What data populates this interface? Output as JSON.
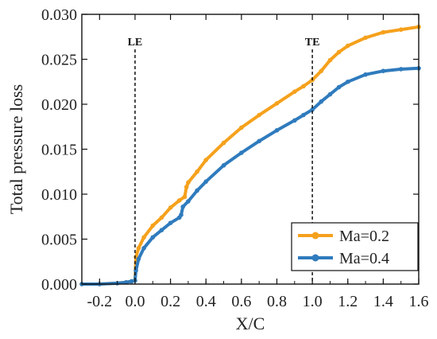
{
  "chart_data": {
    "type": "line",
    "xlabel": "X/C",
    "ylabel": "Total pressure loss",
    "xlim": [
      -0.3,
      1.6
    ],
    "ylim": [
      0.0,
      0.03
    ],
    "x_ticks": [
      -0.2,
      0.0,
      0.2,
      0.4,
      0.6,
      0.8,
      1.0,
      1.2,
      1.4,
      1.6
    ],
    "x_tick_labels": [
      "-0.2",
      "0.0",
      "0.2",
      "0.4",
      "0.6",
      "0.8",
      "1.0",
      "1.2",
      "1.4",
      "1.6"
    ],
    "y_ticks": [
      0.0,
      0.005,
      0.01,
      0.015,
      0.02,
      0.025,
      0.03
    ],
    "y_tick_labels": [
      "0.000",
      "0.005",
      "0.010",
      "0.015",
      "0.020",
      "0.025",
      "0.030"
    ],
    "vertical_markers": [
      {
        "x": 0.0,
        "label": "LE"
      },
      {
        "x": 1.0,
        "label": "TE"
      }
    ],
    "legend_position": "bottom-right",
    "series": [
      {
        "name": "Ma=0.2",
        "color": "#f5a11c",
        "x": [
          -0.3,
          -0.2,
          -0.1,
          -0.05,
          -0.02,
          0.0,
          0.005,
          0.02,
          0.05,
          0.1,
          0.15,
          0.2,
          0.25,
          0.28,
          0.29,
          0.3,
          0.35,
          0.4,
          0.5,
          0.6,
          0.7,
          0.8,
          0.9,
          0.95,
          1.0,
          1.05,
          1.1,
          1.15,
          1.2,
          1.3,
          1.4,
          1.5,
          1.6
        ],
        "y": [
          0.0,
          0.0,
          0.0001,
          0.0002,
          0.0003,
          0.0004,
          0.003,
          0.004,
          0.0052,
          0.0065,
          0.0074,
          0.0085,
          0.0093,
          0.0097,
          0.0108,
          0.0113,
          0.0125,
          0.0138,
          0.0157,
          0.0174,
          0.0188,
          0.0201,
          0.0214,
          0.022,
          0.0227,
          0.0237,
          0.0249,
          0.0258,
          0.0265,
          0.0274,
          0.028,
          0.0283,
          0.0286
        ]
      },
      {
        "name": "Ma=0.4",
        "color": "#2f7bbd",
        "x": [
          -0.3,
          -0.2,
          -0.1,
          -0.05,
          -0.02,
          0.0,
          0.005,
          0.02,
          0.05,
          0.1,
          0.15,
          0.2,
          0.25,
          0.26,
          0.27,
          0.3,
          0.35,
          0.4,
          0.5,
          0.6,
          0.7,
          0.8,
          0.9,
          0.95,
          1.0,
          1.05,
          1.1,
          1.15,
          1.2,
          1.3,
          1.4,
          1.5,
          1.6
        ],
        "y": [
          0.0,
          0.0,
          0.0001,
          0.0002,
          0.0003,
          0.0004,
          0.0015,
          0.0028,
          0.004,
          0.0052,
          0.006,
          0.0068,
          0.0074,
          0.0077,
          0.0086,
          0.0092,
          0.0104,
          0.0114,
          0.0132,
          0.0146,
          0.0159,
          0.0171,
          0.0182,
          0.0188,
          0.0194,
          0.0203,
          0.0211,
          0.0219,
          0.0225,
          0.0233,
          0.0237,
          0.0239,
          0.024
        ]
      }
    ]
  }
}
